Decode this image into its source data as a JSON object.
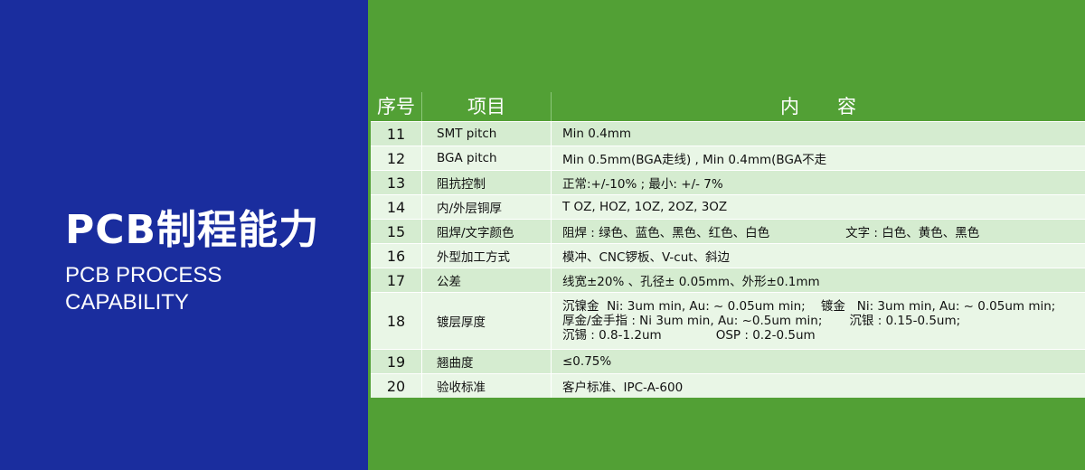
{
  "left": {
    "title_cn": "PCB制程能力",
    "title_en_1": "PCB PROCESS",
    "title_en_2": "CAPABILITY"
  },
  "table": {
    "headers": [
      "序号",
      "项目",
      "内　　容"
    ],
    "rows": [
      {
        "no": "11",
        "item": "SMT pitch",
        "content": "Min 0.4mm"
      },
      {
        "no": "12",
        "item": "BGA pitch",
        "content": "Min 0.5mm(BGA走线) , Min 0.4mm(BGA不走"
      },
      {
        "no": "13",
        "item": "阻抗控制",
        "content": "正常:+/-10% ; 最小: +/- 7%"
      },
      {
        "no": "14",
        "item": "内/外层铜厚",
        "content": "T OZ, HOZ, 1OZ, 2OZ, 3OZ"
      },
      {
        "no": "15",
        "item": "阻焊/文字颜色",
        "content": "阻焊 : 绿色、蓝色、黑色、红色、白色",
        "content2": "文字 : 白色、黄色、黑色"
      },
      {
        "no": "16",
        "item": "外型加工方式",
        "content": "模冲、CNC锣板、V-cut、斜边"
      },
      {
        "no": "17",
        "item": "公差",
        "content": "线宽±20% 、孔径± 0.05mm、外形±0.1mm"
      },
      {
        "no": "18",
        "item": "镀层厚度",
        "lines": [
          "沉镍金  Ni: 3um min, Au: ~ 0.05um min;    镀金   Ni: 3um min, Au: ~ 0.05um min;",
          "厚金/金手指 : Ni 3um min, Au: ~0.5um min;       沉银 : 0.15-0.5um;",
          "沉锡 : 0.8-1.2um              OSP : 0.2-0.5um"
        ]
      },
      {
        "no": "19",
        "item": "翘曲度",
        "content": "≤0.75%"
      },
      {
        "no": "20",
        "item": "验收标准",
        "content": "客户标准、IPC-A-600"
      }
    ]
  }
}
